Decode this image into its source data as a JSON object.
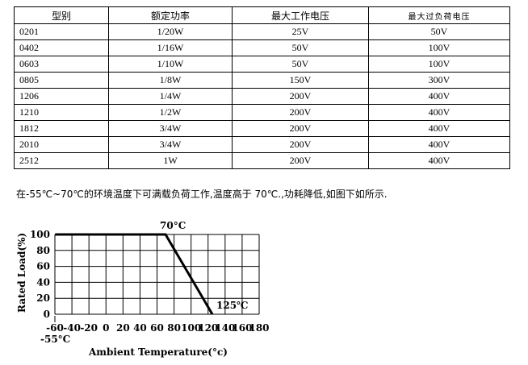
{
  "table": {
    "headers": [
      "型别",
      "额定功率",
      "最大工作电压",
      "最大过负荷电压"
    ],
    "rows": [
      [
        "0201",
        "1/20W",
        "25V",
        "50V"
      ],
      [
        "0402",
        "1/16W",
        "50V",
        "100V"
      ],
      [
        "0603",
        "1/10W",
        "50V",
        "100V"
      ],
      [
        "0805",
        "1/8W",
        "150V",
        "300V"
      ],
      [
        "1206",
        "1/4W",
        "200V",
        "400V"
      ],
      [
        "1210",
        "1/2W",
        "200V",
        "400V"
      ],
      [
        "1812",
        "3/4W",
        "200V",
        "400V"
      ],
      [
        "2010",
        "3/4W",
        "200V",
        "400V"
      ],
      [
        "2512",
        "1W",
        "200V",
        "400V"
      ]
    ]
  },
  "note": "在-55℃~70℃的环境温度下可满载负荷工作,温度高于  70℃.,功耗降低,如图下如所示.",
  "chart_data": {
    "type": "line",
    "xlabel": "Ambient Temperature(°c)",
    "ylabel": "Rated Load(%)",
    "xlim": [
      -60,
      180
    ],
    "ylim": [
      0,
      100
    ],
    "x_ticks": [
      "-60",
      "-40",
      "-20",
      "0",
      "20",
      "40",
      "60",
      "80",
      "100",
      "120",
      "140",
      "160",
      "180"
    ],
    "y_ticks": [
      "0",
      "20",
      "40",
      "60",
      "80",
      "100"
    ],
    "grid": true,
    "series": [
      {
        "x": [
          -55,
          70,
          125
        ],
        "y": [
          100,
          100,
          0
        ]
      }
    ],
    "annotations": [
      "70°C",
      "125℃",
      "-55°C"
    ]
  }
}
